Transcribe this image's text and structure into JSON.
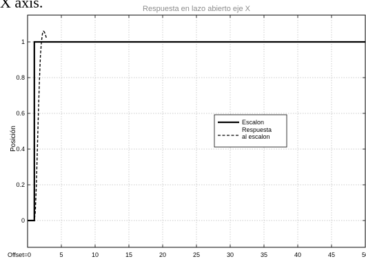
{
  "caption_fragment": "X axis.",
  "chart_data": {
    "type": "line",
    "title": "Respuesta en lazo abierto eje X",
    "xlabel": "",
    "ylabel": "Posición",
    "xlim": [
      0,
      50
    ],
    "ylim": [
      -0.15,
      1.15
    ],
    "grid": true,
    "legend_position": "right-center",
    "x_ticks": [
      {
        "value": 0,
        "label": "Offset=0"
      },
      {
        "value": 5,
        "label": "5"
      },
      {
        "value": 10,
        "label": "10"
      },
      {
        "value": 15,
        "label": "15"
      },
      {
        "value": 20,
        "label": "20"
      },
      {
        "value": 25,
        "label": "25"
      },
      {
        "value": 30,
        "label": "30"
      },
      {
        "value": 35,
        "label": "35"
      },
      {
        "value": 40,
        "label": "40"
      },
      {
        "value": 45,
        "label": "45"
      },
      {
        "value": 50,
        "label": "50"
      }
    ],
    "y_ticks": [
      {
        "value": 0,
        "label": "0"
      },
      {
        "value": 0.2,
        "label": "0.2"
      },
      {
        "value": 0.4,
        "label": "0.4"
      },
      {
        "value": 0.6,
        "label": "0.6"
      },
      {
        "value": 0.8,
        "label": "0.8"
      },
      {
        "value": 1,
        "label": "1"
      }
    ],
    "series": [
      {
        "name": "Escalon",
        "style": "solid",
        "color": "#000000",
        "x": [
          0,
          1,
          1,
          50
        ],
        "y": [
          0,
          0,
          1,
          1
        ]
      },
      {
        "name": "Respuesta al escalon",
        "style": "dashed",
        "color": "#000000",
        "x": [
          0,
          1.0,
          1.15,
          1.3,
          1.45,
          1.6,
          1.75,
          1.9,
          2.05,
          2.2,
          2.35,
          2.5,
          2.65,
          2.8
        ],
        "y": [
          0,
          0,
          0.05,
          0.2,
          0.4,
          0.6,
          0.78,
          0.92,
          1.0,
          1.045,
          1.06,
          1.055,
          1.04,
          1.02
        ]
      }
    ],
    "legend": [
      {
        "label": "Escalon",
        "style": "solid"
      },
      {
        "label": "Respuesta\nal escalon",
        "style": "dashed"
      }
    ]
  }
}
